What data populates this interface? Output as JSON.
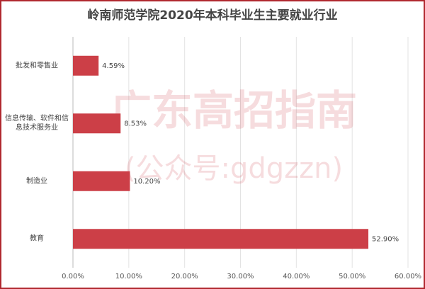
{
  "chart_data": {
    "type": "bar",
    "orientation": "horizontal",
    "title": "岭南师范学院2020年本科毕业生主要就业行业",
    "watermark": "广东高招指南",
    "watermark_subtitle": "(公众号:gdgzzn)",
    "categories": [
      "批发和零售业",
      "信息传输、软件和信息技术服务业",
      "制造业",
      "教育"
    ],
    "values": [
      4.59,
      8.53,
      10.2,
      52.9
    ],
    "value_labels": [
      "4.59%",
      "8.53%",
      "10.20%",
      "52.90%"
    ],
    "color": "#cc3f47",
    "xlim": [
      0,
      60
    ],
    "xticks": [
      {
        "value": 0,
        "label": "0.00%"
      },
      {
        "value": 10,
        "label": "10.00%"
      },
      {
        "value": 20,
        "label": "20.00%"
      },
      {
        "value": 30,
        "label": "30.00%"
      },
      {
        "value": 40,
        "label": "40.00%"
      },
      {
        "value": 50,
        "label": "50.00%"
      },
      {
        "value": 60,
        "label": "60.00%"
      }
    ],
    "grid": true
  }
}
